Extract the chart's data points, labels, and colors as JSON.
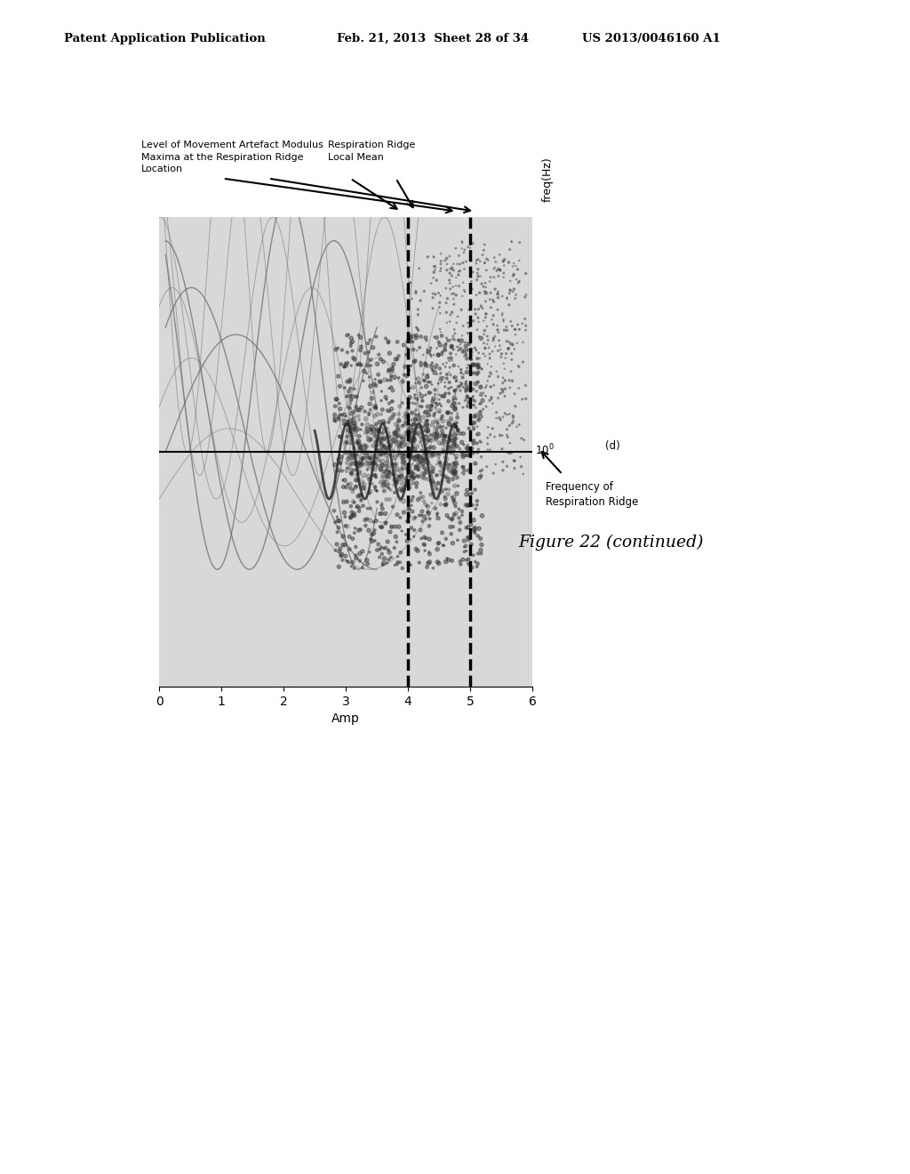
{
  "header_left": "Patent Application Publication",
  "header_center": "Feb. 21, 2013  Sheet 28 of 34",
  "header_right": "US 2013/0046160 A1",
  "figure_label": "Figure 22 (continued)",
  "xlabel": "Amp",
  "ylabel": "freq(Hz)",
  "xticks": [
    0,
    1,
    2,
    3,
    4,
    5,
    6
  ],
  "annotation1_line1": "Level of Movement Artefact Modulus",
  "annotation1_line2": "Maxima at the Respiration Ridge",
  "annotation1_line3": "Location",
  "annotation2_line1": "Respiration Ridge",
  "annotation2_line2": "Local Mean",
  "annotation3_line1": "Frequency of",
  "annotation3_line2": "Respiration Ridge",
  "annotation4": "(d)",
  "freq_label": "10°",
  "background_color": "#ffffff",
  "plot_bg_color": "#d8d8d8",
  "dashed_vline1": 5.0,
  "dashed_vline2": 4.0,
  "solid_hline_y": 0.5
}
